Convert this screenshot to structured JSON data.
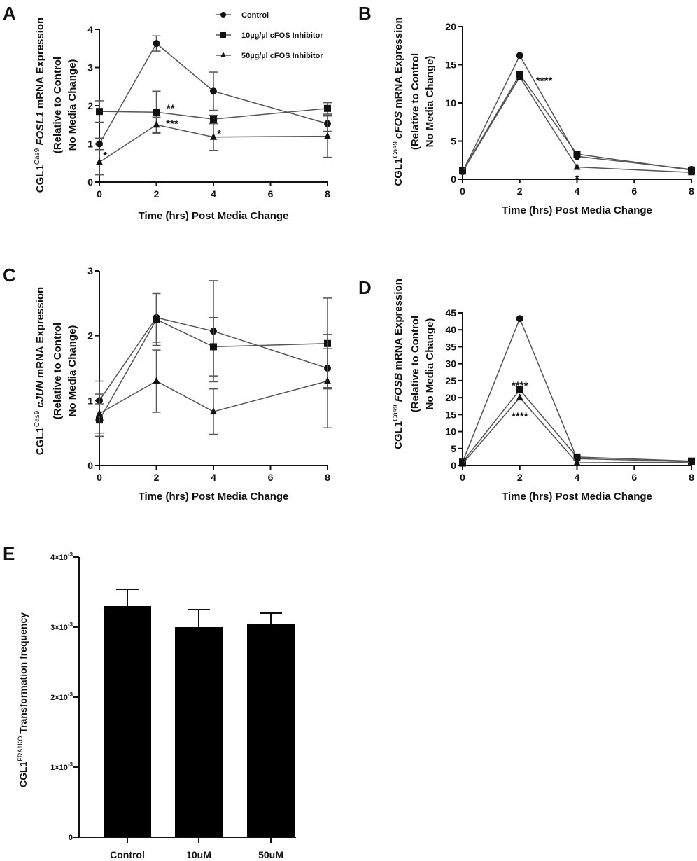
{
  "colors": {
    "ink": "#111111",
    "line": "#555555",
    "bar": "#000000"
  },
  "legend": [
    {
      "label": "Control",
      "marker": "circle"
    },
    {
      "label": "10µg/µl cFOS Inhibitor",
      "marker": "square"
    },
    {
      "label": "50µg/µl cFOS Inhibitor",
      "marker": "triangle"
    }
  ],
  "chart_data": [
    {
      "panel": "A",
      "type": "line",
      "xlabel": "Time (hrs) Post Media Change",
      "ylabel": {
        "prefix": "CGL1",
        "sup": "Cas9",
        "gene": "FOSL1",
        "suffix": " mRNA Expression",
        "line2": "(Relative to Control",
        "line3": "No Media Change)"
      },
      "xlim": [
        0,
        8
      ],
      "ylim": [
        0,
        4
      ],
      "xticks": [
        0,
        2,
        4,
        6,
        8
      ],
      "yticks": [
        0,
        1,
        2,
        3,
        4
      ],
      "x": [
        0,
        2,
        4,
        8
      ],
      "series": [
        {
          "name": "Control",
          "marker": "circle",
          "values": [
            1.0,
            3.63,
            2.38,
            1.53
          ],
          "errors": [
            0.15,
            0.2,
            0.5,
            0.2
          ]
        },
        {
          "name": "10µg/µl cFOS Inhibitor",
          "marker": "square",
          "values": [
            1.85,
            1.83,
            1.65,
            1.93
          ],
          "errors": [
            0.28,
            0.55,
            0.1,
            0.15
          ]
        },
        {
          "name": "50µg/µl cFOS Inhibitor",
          "marker": "triangle",
          "values": [
            0.52,
            1.5,
            1.18,
            1.2
          ],
          "errors": [
            0.33,
            0.2,
            0.35,
            0.55
          ]
        }
      ],
      "annotations": [
        {
          "x": 0.2,
          "y": 0.72,
          "text": "*"
        },
        {
          "x": 2.5,
          "y": 1.95,
          "text": "**"
        },
        {
          "x": 2.55,
          "y": 1.55,
          "text": "***"
        },
        {
          "x": 4.2,
          "y": 1.28,
          "text": "*"
        }
      ],
      "legend_position": "top-right"
    },
    {
      "panel": "B",
      "type": "line",
      "xlabel": "Time (hrs) Post Media Change",
      "ylabel": {
        "prefix": "CGL1",
        "sup": "Cas9",
        "gene": "cFOS",
        "suffix": " mRNA Expression",
        "line2": "(Relative to Control",
        "line3": "No Media Change)"
      },
      "xlim": [
        0,
        8
      ],
      "ylim": [
        0,
        20
      ],
      "xticks": [
        0,
        2,
        4,
        6,
        8
      ],
      "yticks": [
        0,
        5,
        10,
        15,
        20
      ],
      "x": [
        0,
        2,
        4,
        8
      ],
      "series": [
        {
          "name": "Control",
          "marker": "circle",
          "values": [
            1.0,
            16.2,
            3.0,
            1.3
          ],
          "errors": [
            0,
            0,
            0,
            0
          ]
        },
        {
          "name": "10µg/µl cFOS Inhibitor",
          "marker": "square",
          "values": [
            1.1,
            13.7,
            3.3,
            1.2
          ],
          "errors": [
            0,
            0,
            0,
            0
          ]
        },
        {
          "name": "50µg/µl cFOS Inhibitor",
          "marker": "triangle",
          "values": [
            1.0,
            13.4,
            1.6,
            0.9
          ],
          "errors": [
            0,
            0,
            0,
            0
          ]
        }
      ],
      "annotations": [
        {
          "x": 2.85,
          "y": 13.0,
          "text": "****"
        },
        {
          "x": 4.0,
          "y": 0.2,
          "text": "*"
        }
      ]
    },
    {
      "panel": "C",
      "type": "line",
      "xlabel": "Time (hrs) Post Media Change",
      "ylabel": {
        "prefix": "CGL1",
        "sup": "Cas9",
        "gene": "cJUN",
        "suffix": " mRNA Expression",
        "line2": "(Relative to Control",
        "line3": "No Media Change)"
      },
      "xlim": [
        0,
        8
      ],
      "ylim": [
        0,
        3
      ],
      "xticks": [
        0,
        2,
        4,
        6,
        8
      ],
      "yticks": [
        0,
        1,
        2,
        3
      ],
      "x": [
        0,
        2,
        4,
        8
      ],
      "series": [
        {
          "name": "Control",
          "marker": "circle",
          "values": [
            1.0,
            2.28,
            2.07,
            1.5
          ],
          "errors": [
            0.3,
            0.38,
            0.78,
            0.3
          ]
        },
        {
          "name": "10µg/µl cFOS Inhibitor",
          "marker": "square",
          "values": [
            0.7,
            2.25,
            1.83,
            1.88
          ],
          "errors": [
            0.25,
            0.4,
            0.45,
            0.7
          ]
        },
        {
          "name": "50µg/µl cFOS Inhibitor",
          "marker": "triangle",
          "values": [
            0.8,
            1.3,
            0.83,
            1.3
          ],
          "errors": [
            0.3,
            0.48,
            0.35,
            0.72
          ]
        }
      ],
      "annotations": []
    },
    {
      "panel": "D",
      "type": "line",
      "xlabel": "Time (hrs) Post Media Change",
      "ylabel": {
        "prefix": "CGL1",
        "sup": "Cas9",
        "gene": "FOSB",
        "suffix": " mRNA Expression",
        "line2": "(Relative to Control",
        "line3": "No Media Change)"
      },
      "xlim": [
        0,
        8
      ],
      "ylim": [
        0,
        45
      ],
      "xticks": [
        0,
        2,
        4,
        6,
        8
      ],
      "yticks": [
        0,
        5,
        10,
        15,
        20,
        25,
        30,
        35,
        40,
        45
      ],
      "x": [
        0,
        2,
        4,
        8
      ],
      "series": [
        {
          "name": "Control",
          "marker": "circle",
          "values": [
            1.0,
            43.3,
            2.0,
            1.2
          ],
          "errors": [
            0,
            0,
            0,
            0
          ]
        },
        {
          "name": "10µg/µl cFOS Inhibitor",
          "marker": "square",
          "values": [
            1.0,
            22.3,
            2.5,
            1.3
          ],
          "errors": [
            0,
            0,
            0,
            0
          ]
        },
        {
          "name": "50µg/µl cFOS Inhibitor",
          "marker": "triangle",
          "values": [
            0.5,
            20.0,
            0.8,
            1.0
          ],
          "errors": [
            0,
            0,
            0,
            0
          ]
        }
      ],
      "annotations": [
        {
          "x": 2.0,
          "y": 23.8,
          "text": "****"
        },
        {
          "x": 2.0,
          "y": 14.8,
          "text": "****"
        }
      ]
    },
    {
      "panel": "E",
      "type": "bar",
      "xlabel": "",
      "ylabel": {
        "prefix": "CGL1",
        "sup": "FRA1KO",
        "gene": "",
        "suffix": " Transformation frequency"
      },
      "categories": [
        "Control",
        "10uM",
        "50uM"
      ],
      "values": [
        0.0033,
        0.003,
        0.00305
      ],
      "errors": [
        0.00024,
        0.00025,
        0.00015
      ],
      "ylim": [
        0,
        0.004
      ],
      "yticks": [
        {
          "value": 0,
          "label": "0"
        },
        {
          "value": 0.001,
          "label": "1×10",
          "exp": "-3"
        },
        {
          "value": 0.002,
          "label": "2×10",
          "exp": "-3"
        },
        {
          "value": 0.003,
          "label": "3×10",
          "exp": "-3"
        },
        {
          "value": 0.004,
          "label": "4×10",
          "exp": "-3"
        }
      ]
    }
  ]
}
